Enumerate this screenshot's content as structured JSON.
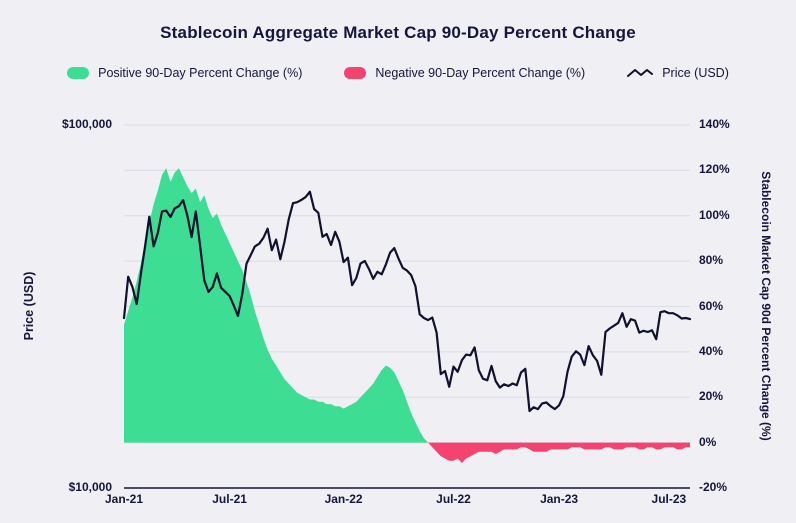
{
  "title": "Stablecoin Aggregate Market Cap 90-Day Percent Change",
  "colors": {
    "background": "#efeff4",
    "text": "#15153d",
    "gridline": "#dbdce5",
    "axis_line": "#15153d",
    "positive": "#3edd94",
    "negative": "#f4436f",
    "price_line": "#10112f"
  },
  "legend": [
    {
      "label": "Positive 90-Day Percent Change (%)",
      "color": "#3edd94",
      "swatch": "area"
    },
    {
      "label": "Negative 90-Day Percent Change (%)",
      "color": "#f4436f",
      "swatch": "area"
    },
    {
      "label": "Price (USD)",
      "color": "#10112f",
      "swatch": "line"
    }
  ],
  "axes": {
    "left": {
      "title": "Price (USD)",
      "ticks": [
        "$100,000",
        "$10,000"
      ]
    },
    "right": {
      "title": "Stablecoin Market Cap 90d Percent Change (%)",
      "ticks": [
        "140%",
        "120%",
        "100%",
        "80%",
        "60%",
        "40%",
        "20%",
        "0%",
        "-20%"
      ]
    },
    "x": {
      "ticks": [
        "Jan-21",
        "Jul-21",
        "Jan-22",
        "Jul-22",
        "Jan-23",
        "Jul-23"
      ]
    }
  },
  "chart_data": {
    "type": "area+line",
    "x_start": "Jan-2021",
    "x_end": "Aug-2023",
    "interval": "weekly",
    "grid": true,
    "x_tick_labels": [
      "Jan-21",
      "Jul-21",
      "Jan-22",
      "Jul-22",
      "Jan-23",
      "Jul-23"
    ],
    "x_tick_indices": [
      0,
      25,
      52,
      78,
      103,
      129
    ],
    "left_axis": {
      "label": "Price (USD)",
      "scale": "log",
      "range": [
        10000,
        100000
      ]
    },
    "right_axis": {
      "label": "Stablecoin Market Cap 90d Percent Change (%)",
      "range": [
        -20,
        140
      ],
      "tick_step": 20
    },
    "series": [
      {
        "name": "Stablecoin Market Cap 90d Percent Change (%)",
        "type": "area",
        "axis": "right",
        "positive_color": "#3edd94",
        "negative_color": "#f4436f",
        "values": [
          52,
          58,
          64,
          71,
          79,
          88,
          97,
          105,
          111,
          118,
          121,
          115,
          119,
          121,
          117,
          113,
          110,
          112,
          106,
          109,
          103,
          99,
          101,
          96,
          92,
          88,
          84,
          80,
          76,
          71,
          65,
          58,
          52,
          46,
          41,
          37,
          34,
          31,
          28,
          26,
          24,
          22,
          21,
          20,
          19,
          19,
          18,
          18,
          17,
          17,
          16,
          16,
          15,
          16,
          17,
          18,
          20,
          22,
          24,
          26,
          29,
          32,
          34,
          33,
          31,
          27,
          23,
          18,
          13,
          9,
          5,
          2,
          0,
          -2,
          -4,
          -6,
          -7,
          -8,
          -8,
          -7,
          -9,
          -7,
          -6,
          -5,
          -4,
          -4,
          -4,
          -4,
          -5,
          -4,
          -3,
          -3,
          -3,
          -3,
          -2,
          -2,
          -3,
          -4,
          -4,
          -4,
          -4,
          -3,
          -3,
          -3,
          -3,
          -3,
          -2,
          -2,
          -2,
          -3,
          -3,
          -3,
          -3,
          -3,
          -2,
          -2,
          -3,
          -3,
          -3,
          -2,
          -2,
          -2,
          -3,
          -3,
          -2,
          -2,
          -3,
          -3,
          -2,
          -2,
          -2,
          -3,
          -3,
          -2,
          -2
        ]
      },
      {
        "name": "Price (USD)",
        "type": "line",
        "axis": "left",
        "color": "#10112f",
        "values": [
          29400,
          38200,
          35800,
          32100,
          38900,
          46400,
          55900,
          46300,
          50400,
          57800,
          58100,
          55800,
          58900,
          59800,
          62100,
          56200,
          49100,
          57800,
          46700,
          37300,
          34700,
          35800,
          39000,
          35600,
          34700,
          33800,
          31800,
          29800,
          34300,
          41500,
          43800,
          46300,
          47100,
          48900,
          51800,
          45200,
          48300,
          42700,
          47700,
          54900,
          60900,
          61300,
          62200,
          63300,
          65500,
          58700,
          57300,
          49200,
          50100,
          46700,
          50800,
          47700,
          41900,
          43100,
          36200,
          37900,
          41500,
          42200,
          40100,
          37700,
          39400,
          38800,
          41300,
          44500,
          45800,
          42800,
          40400,
          39700,
          38600,
          36000,
          30100,
          29400,
          29000,
          29500,
          26800,
          20600,
          21000,
          19000,
          21600,
          20900,
          22500,
          23300,
          23200,
          24400,
          21100,
          20000,
          19800,
          21700,
          19700,
          18900,
          19300,
          19100,
          19400,
          19200,
          20800,
          21300,
          16300,
          16700,
          16500,
          17100,
          17200,
          16800,
          16500,
          16900,
          17900,
          20900,
          23000,
          23800,
          23300,
          21800,
          24600,
          23200,
          22400,
          20500,
          26900,
          27500,
          28000,
          28500,
          30300,
          27800,
          29200,
          28900,
          26800,
          27100,
          26900,
          27200,
          25700,
          30500,
          30700,
          30300,
          30300,
          29900,
          29300,
          29400,
          29200
        ]
      }
    ]
  }
}
